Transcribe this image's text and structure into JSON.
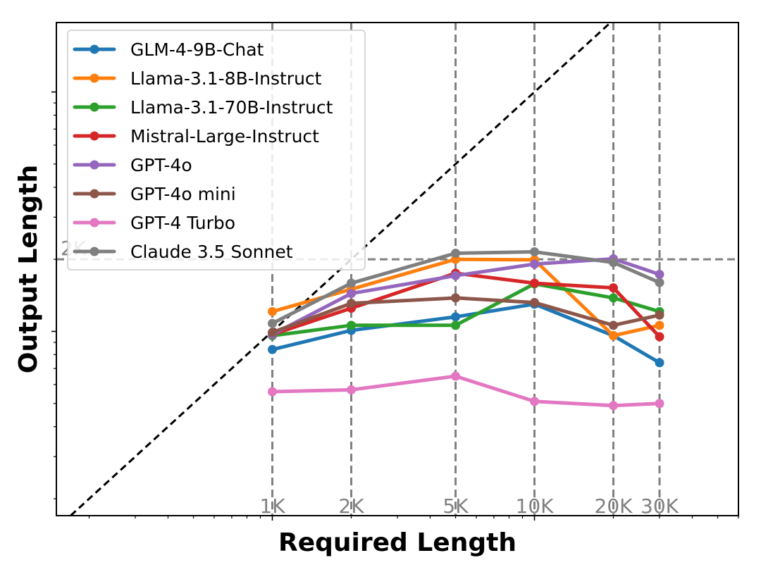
{
  "chart_data": {
    "type": "line",
    "xlabel": "Required Length",
    "ylabel": "Output Length",
    "x_scale": "log",
    "y_scale": "log",
    "xlim": [
      150,
      60000
    ],
    "ylim": [
      170,
      19500
    ],
    "x": [
      1000,
      2000,
      5000,
      10000,
      20000,
      30000
    ],
    "x_ref_labels": [
      "1K",
      "2K",
      "5K",
      "10K",
      "20K",
      "30K"
    ],
    "y_ref": {
      "value": 2000,
      "label": "2K"
    },
    "diagonal": "y = x",
    "grid": false,
    "legend_position": "top-left",
    "series": [
      {
        "name": "GLM-4-9B-Chat",
        "color": "#1f77b4",
        "values": [
          840,
          1010,
          1150,
          1300,
          960,
          740
        ]
      },
      {
        "name": "Llama-3.1-8B-Instruct",
        "color": "#ff7f0e",
        "values": [
          1210,
          1500,
          2000,
          1990,
          960,
          1060
        ]
      },
      {
        "name": "Llama-3.1-70B-Instruct",
        "color": "#2ca02c",
        "values": [
          960,
          1060,
          1060,
          1580,
          1380,
          1210
        ]
      },
      {
        "name": "Mistral-Large-Instruct",
        "color": "#d62728",
        "values": [
          970,
          1250,
          1750,
          1590,
          1520,
          950
        ]
      },
      {
        "name": "GPT-4o",
        "color": "#9467bd",
        "values": [
          970,
          1440,
          1710,
          1910,
          2010,
          1730
        ]
      },
      {
        "name": "GPT-4o mini",
        "color": "#8c564b",
        "values": [
          990,
          1310,
          1380,
          1320,
          1060,
          1170
        ]
      },
      {
        "name": "GPT-4 Turbo",
        "color": "#e377c2",
        "values": [
          560,
          570,
          650,
          510,
          490,
          500
        ]
      },
      {
        "name": "Claude 3.5 Sonnet",
        "color": "#7f7f7f",
        "values": [
          1080,
          1590,
          2120,
          2150,
          1940,
          1600
        ]
      }
    ]
  }
}
